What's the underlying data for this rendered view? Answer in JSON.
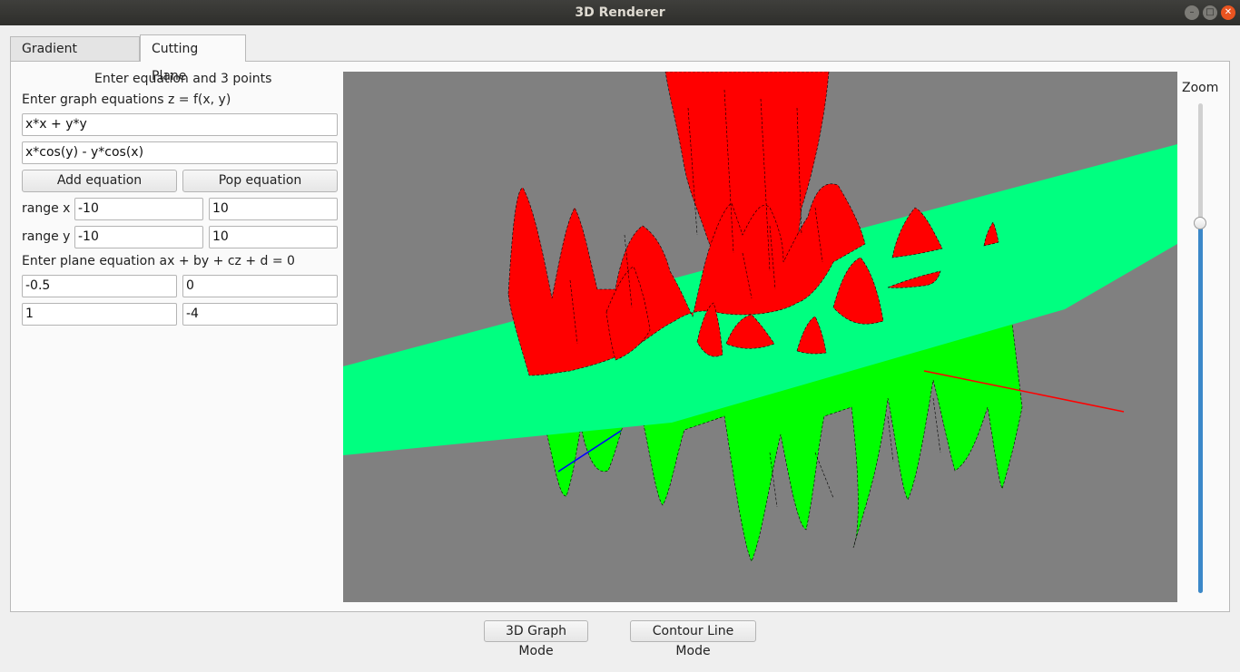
{
  "window": {
    "title": "3D Renderer"
  },
  "tabs": [
    {
      "label": "Gradient Descent"
    },
    {
      "label": "Cutting Plane"
    }
  ],
  "form": {
    "heading": "Enter equation and 3 points",
    "equations_label": "Enter graph equations z = f(x, y)",
    "equations": [
      "x*x + y*y",
      "x*cos(y) - y*cos(x)"
    ],
    "add_equation": "Add equation",
    "pop_equation": "Pop equation",
    "range_x_label": "range x",
    "range_x": [
      "-10",
      "10"
    ],
    "range_y_label": "range y",
    "range_y": [
      "-10",
      "10"
    ],
    "plane_label": "Enter plane equation ax + by + cz + d = 0",
    "plane_coeffs": [
      "-0.5",
      "0",
      "1",
      "-4"
    ]
  },
  "zoom": {
    "label": "Zoom",
    "level": 0.76
  },
  "modes": {
    "graph_mode": "3D Graph Mode",
    "contour_mode": "Contour Line Mode"
  },
  "colors": {
    "viewport_bg": "#808080",
    "plane": "#00ff80",
    "surface_above": "#ff0000",
    "surface_below": "#00ff00",
    "accent": "#3b88c9"
  }
}
